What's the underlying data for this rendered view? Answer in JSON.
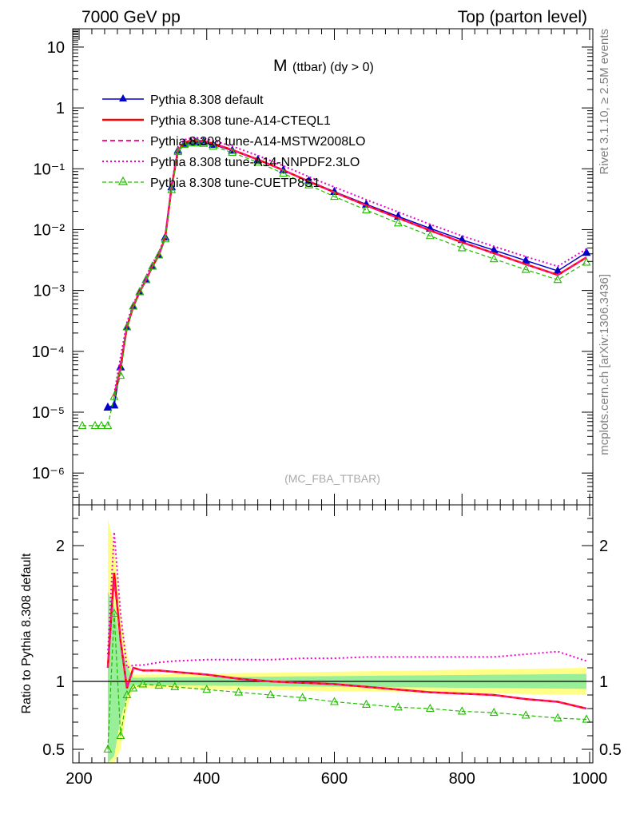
{
  "header": {
    "left": "7000 GeV pp",
    "right": "Top (parton level)"
  },
  "side": {
    "rivet": "Rivet 3.1.10, ≥ 2.5M events",
    "mcplots": "mcplots.cern.ch [arXiv:1306.3436]"
  },
  "plot_title_main": "M",
  "plot_title_sub": "(ttbar) (dy > 0)",
  "analysis_label": "(MC_FBA_TTBAR)",
  "ratio_ylabel": "Ratio to Pythia 8.308 default",
  "legend": [
    "Pythia 8.308 default",
    "Pythia 8.308 tune-A14-CTEQL1",
    "Pythia 8.308 tune-A14-MSTW2008LO",
    "Pythia 8.308 tune-A14-NNPDF2.3LO",
    "Pythia 8.308 tune-CUETP8S1"
  ],
  "colors": {
    "default": "#0000cc",
    "cteql1": "#ff0000",
    "mstw": "#ff1493",
    "nnpdf": "#ee00cc",
    "cuetp8s1": "#22bb00",
    "band_yellow": "#ffff88",
    "band_green": "#99ee99"
  },
  "chart_data": [
    {
      "type": "line",
      "panel": "main",
      "yscale": "log",
      "xlim": [
        190,
        1005
      ],
      "ylim": [
        3e-07,
        20
      ],
      "y_ticks": [
        "10",
        "1",
        "10⁻¹",
        "10⁻²",
        "10⁻³",
        "10⁻⁴",
        "10⁻⁵",
        "10⁻⁶"
      ],
      "x": [
        205,
        225,
        235,
        245,
        255,
        265,
        275,
        285,
        295,
        305,
        315,
        325,
        335,
        345,
        355,
        365,
        375,
        385,
        395,
        410,
        440,
        480,
        520,
        560,
        600,
        650,
        700,
        750,
        800,
        850,
        900,
        950,
        995
      ],
      "series": [
        {
          "name": "Pythia 8.308 default",
          "values": [
            null,
            null,
            null,
            1.2e-05,
            1.3e-05,
            5.5e-05,
            0.00025,
            0.00055,
            0.00095,
            0.0015,
            0.0025,
            0.0038,
            0.0075,
            0.05,
            0.2,
            0.26,
            0.28,
            0.28,
            0.275,
            0.25,
            0.2,
            0.14,
            0.095,
            0.063,
            0.042,
            0.026,
            0.0165,
            0.0105,
            0.0068,
            0.0046,
            0.0031,
            0.0021,
            0.0042
          ]
        },
        {
          "name": "Pythia 8.308 tune-A14-CTEQL1",
          "values": [
            null,
            null,
            null,
            null,
            1.8e-05,
            5.5e-05,
            0.00025,
            0.00055,
            0.00095,
            0.0015,
            0.0025,
            0.0038,
            0.0075,
            0.05,
            0.2,
            0.27,
            0.29,
            0.29,
            0.285,
            0.26,
            0.205,
            0.142,
            0.095,
            0.062,
            0.041,
            0.025,
            0.0155,
            0.0097,
            0.0062,
            0.0041,
            0.0027,
            0.0018,
            0.0035
          ]
        },
        {
          "name": "Pythia 8.308 tune-A14-MSTW2008LO",
          "values": [
            null,
            null,
            null,
            null,
            1.8e-05,
            5.5e-05,
            0.00026,
            0.00056,
            0.00096,
            0.0015,
            0.0025,
            0.0038,
            0.0075,
            0.05,
            0.2,
            0.27,
            0.29,
            0.29,
            0.285,
            0.26,
            0.205,
            0.142,
            0.095,
            0.062,
            0.041,
            0.025,
            0.0155,
            0.0097,
            0.0062,
            0.0041,
            0.0027,
            0.0018,
            0.0035
          ]
        },
        {
          "name": "Pythia 8.308 tune-A14-NNPDF2.3LO",
          "values": [
            null,
            null,
            null,
            null,
            2e-05,
            8e-05,
            0.0003,
            0.0006,
            0.001,
            0.0017,
            0.0028,
            0.0042,
            0.008,
            0.055,
            0.23,
            0.3,
            0.32,
            0.32,
            0.315,
            0.29,
            0.235,
            0.165,
            0.112,
            0.074,
            0.05,
            0.031,
            0.0195,
            0.0122,
            0.0079,
            0.0053,
            0.0036,
            0.0025,
            0.0048
          ]
        },
        {
          "name": "Pythia 8.308 tune-CUETP8S1",
          "values": [
            6e-06,
            6e-06,
            6e-06,
            6e-06,
            1.8e-05,
            4e-05,
            0.00025,
            0.00055,
            0.00095,
            0.0015,
            0.0025,
            0.0038,
            0.007,
            0.045,
            0.19,
            0.25,
            0.265,
            0.265,
            0.26,
            0.235,
            0.185,
            0.128,
            0.084,
            0.054,
            0.035,
            0.021,
            0.0128,
            0.0079,
            0.005,
            0.0033,
            0.0022,
            0.0015,
            0.0029
          ]
        }
      ]
    },
    {
      "type": "line",
      "panel": "ratio",
      "xlim": [
        190,
        1005
      ],
      "ylim": [
        0.4,
        2.3
      ],
      "x_ticks": [
        200,
        400,
        600,
        800,
        1000
      ],
      "y_ticks": [
        0.5,
        1,
        2
      ],
      "x": [
        245,
        255,
        265,
        275,
        285,
        300,
        325,
        350,
        400,
        450,
        500,
        550,
        600,
        650,
        700,
        750,
        800,
        850,
        900,
        950,
        995
      ],
      "series": [
        {
          "name": "Pythia 8.308 default",
          "values": [
            1,
            1,
            1,
            1,
            1,
            1,
            1,
            1,
            1,
            1,
            1,
            1,
            1,
            1,
            1,
            1,
            1,
            1,
            1,
            1,
            1
          ]
        },
        {
          "name": "Pythia 8.308 tune-A14-CTEQL1",
          "values": [
            1.1,
            1.8,
            1.3,
            0.95,
            1.1,
            1.08,
            1.08,
            1.07,
            1.05,
            1.02,
            1.0,
            0.99,
            0.98,
            0.96,
            0.94,
            0.92,
            0.91,
            0.9,
            0.87,
            0.85,
            0.8
          ]
        },
        {
          "name": "Pythia 8.308 tune-A14-MSTW2008LO",
          "values": [
            1.1,
            1.75,
            1.3,
            0.95,
            1.1,
            1.08,
            1.08,
            1.07,
            1.05,
            1.02,
            1.0,
            0.99,
            0.98,
            0.96,
            0.94,
            0.92,
            0.91,
            0.9,
            0.87,
            0.85,
            0.8
          ]
        },
        {
          "name": "Pythia 8.308 tune-A14-NNPDF2.3LO",
          "values": [
            1.2,
            2.1,
            1.5,
            1.1,
            1.12,
            1.12,
            1.14,
            1.15,
            1.16,
            1.16,
            1.16,
            1.17,
            1.17,
            1.18,
            1.18,
            1.18,
            1.18,
            1.18,
            1.2,
            1.22,
            1.15
          ]
        },
        {
          "name": "Pythia 8.308 tune-CUETP8S1",
          "values": [
            0.5,
            1.5,
            0.6,
            0.9,
            0.95,
            0.98,
            0.97,
            0.96,
            0.94,
            0.92,
            0.9,
            0.88,
            0.85,
            0.83,
            0.81,
            0.8,
            0.78,
            0.77,
            0.75,
            0.73,
            0.72
          ]
        }
      ]
    }
  ]
}
